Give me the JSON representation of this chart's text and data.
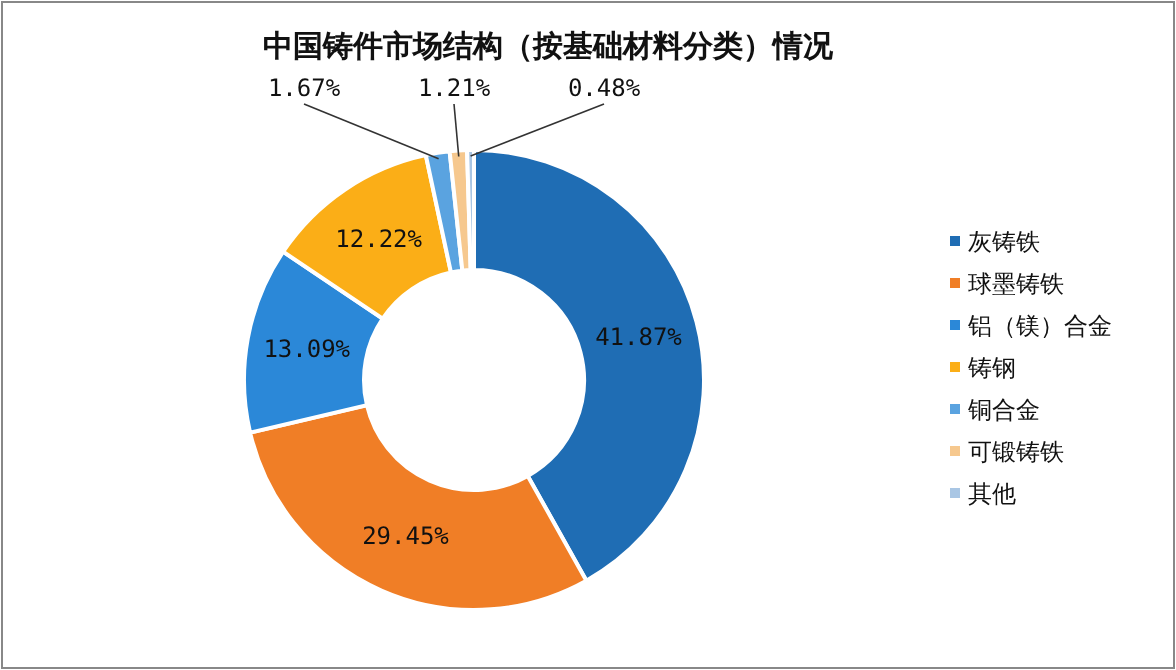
{
  "chart_data": {
    "type": "donut",
    "title": "中国铸件市场结构（按基础材料分类）情况",
    "categories": [
      "灰铸铁",
      "球墨铸铁",
      "铝（镁）合金",
      "铸钢",
      "铜合金",
      "可锻铸铁",
      "其他"
    ],
    "values": [
      41.87,
      29.45,
      13.09,
      12.22,
      1.67,
      1.21,
      0.48
    ],
    "value_labels": [
      "41.87%",
      "29.45%",
      "13.09%",
      "12.22%",
      "1.67%",
      "1.21%",
      "0.48%"
    ],
    "colors": [
      "#1f6db4",
      "#f07e26",
      "#2b88d8",
      "#fbae17",
      "#5aa3e0",
      "#f6c88e",
      "#a9c6e4"
    ],
    "legend": "right"
  }
}
